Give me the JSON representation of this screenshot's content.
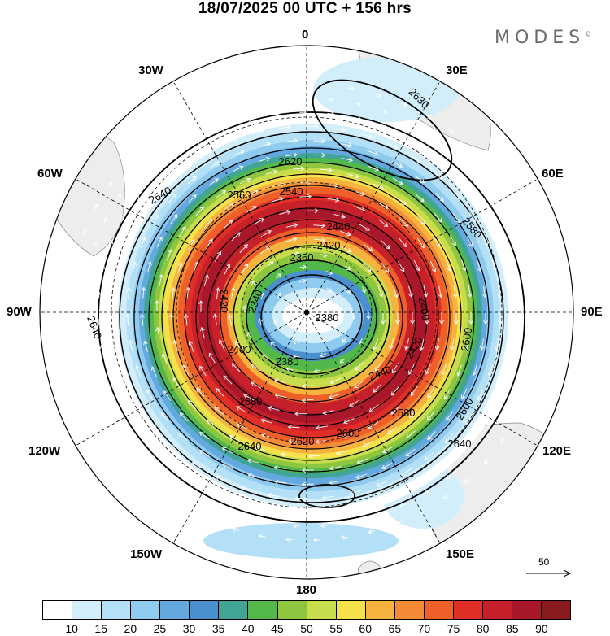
{
  "title": "18/07/2025  00 UTC  + 156 hrs",
  "brand": "MODES",
  "brand_mark": "©",
  "map": {
    "projection": "south polar stereographic",
    "longitude_labels": [
      "0",
      "30E",
      "60E",
      "90E",
      "120E",
      "150E",
      "180",
      "150W",
      "120W",
      "90W",
      "60W",
      "30W"
    ],
    "contour_field": "geopotential height",
    "contour_labels": [
      "2340",
      "2360",
      "2380",
      "2400",
      "2420",
      "2440",
      "2540",
      "2560",
      "2580",
      "2600",
      "2620",
      "2630",
      "2640"
    ],
    "wind_shading_levels": [
      10,
      15,
      20,
      25,
      30,
      35,
      40,
      45,
      50,
      55,
      60,
      65,
      70,
      75,
      80,
      85,
      90
    ],
    "reference_vector_label": "50"
  },
  "colorbar": {
    "colors": [
      "#ffffff",
      "#d2eefb",
      "#b4e0f7",
      "#8fcbef",
      "#63a9df",
      "#4a8fce",
      "#41a494",
      "#52b84a",
      "#8ec63f",
      "#c7dd4b",
      "#f5e24a",
      "#f6b33e",
      "#f38a35",
      "#ef5f2a",
      "#e02f26",
      "#c6202a",
      "#a8182a",
      "#8b1a1e"
    ],
    "labels": [
      "10",
      "15",
      "20",
      "25",
      "30",
      "35",
      "40",
      "45",
      "50",
      "55",
      "60",
      "65",
      "70",
      "75",
      "80",
      "85",
      "90"
    ]
  }
}
